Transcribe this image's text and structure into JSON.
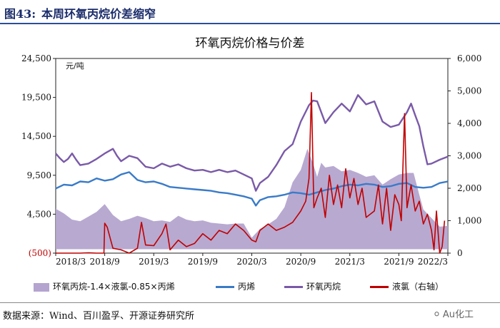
{
  "header": {
    "figure_no": "图43:",
    "figure_title": "本周环氧丙烷价差缩窄"
  },
  "source": "数据来源：Wind、百川盈孚、开源证券研究所",
  "watermark": "Au化工",
  "chart_data": {
    "type": "line",
    "title": "环氧丙烷价格与价差",
    "left_axis": {
      "unit": "元/吨",
      "min": -500,
      "max": 24500,
      "ticks": [
        -500,
        4500,
        9500,
        14500,
        19500,
        24500
      ],
      "tick_labels": [
        "(500)",
        "4,500",
        "9,500",
        "14,500",
        "19,500",
        "24,500"
      ]
    },
    "right_axis": {
      "min": 0,
      "max": 6000,
      "ticks": [
        0,
        1000,
        2000,
        3000,
        4000,
        5000,
        6000
      ],
      "tick_labels": [
        "0",
        "1,000",
        "2,000",
        "3,000",
        "4,000",
        "5,000",
        "6,000"
      ]
    },
    "x_tick_labels": [
      "2018/3",
      "2018/9",
      "2019/3",
      "2019/9",
      "2020/3",
      "2020/9",
      "2021/3",
      "2021/9",
      "2022/3"
    ],
    "x_ticks": [
      0,
      6,
      12,
      18,
      24,
      30,
      36,
      42,
      48
    ],
    "x_unit": "months since 2018/3",
    "series": [
      {
        "name": "环氧丙烷-1.4×液氯-0.85×丙烯",
        "kind": "area",
        "axis": "left",
        "color": "#b4a4cf",
        "points": [
          [
            0,
            5200
          ],
          [
            1,
            4600
          ],
          [
            2,
            3800
          ],
          [
            3,
            3600
          ],
          [
            4,
            4200
          ],
          [
            5,
            4800
          ],
          [
            6,
            5800
          ],
          [
            7,
            4400
          ],
          [
            8,
            3600
          ],
          [
            9,
            3900
          ],
          [
            10,
            4300
          ],
          [
            11,
            4000
          ],
          [
            12,
            3600
          ],
          [
            13,
            3700
          ],
          [
            14,
            3500
          ],
          [
            15,
            4300
          ],
          [
            16,
            3800
          ],
          [
            17,
            3600
          ],
          [
            18,
            3700
          ],
          [
            19,
            3400
          ],
          [
            20,
            3300
          ],
          [
            21,
            3200
          ],
          [
            22,
            3300
          ],
          [
            23,
            3300
          ],
          [
            24,
            1500
          ],
          [
            25,
            2600
          ],
          [
            26,
            3200
          ],
          [
            27,
            3900
          ],
          [
            28,
            5400
          ],
          [
            29,
            8600
          ],
          [
            30,
            10200
          ],
          [
            30.8,
            12900
          ],
          [
            31.5,
            11000
          ],
          [
            32,
            9300
          ],
          [
            32.5,
            11100
          ],
          [
            33,
            10500
          ],
          [
            34,
            10700
          ],
          [
            35,
            10000
          ],
          [
            36,
            10200
          ],
          [
            37,
            9800
          ],
          [
            38,
            9300
          ],
          [
            39,
            9500
          ],
          [
            40,
            8300
          ],
          [
            41,
            9000
          ],
          [
            42,
            9600
          ],
          [
            43,
            9800
          ],
          [
            43.8,
            9800
          ],
          [
            44.5,
            7000
          ],
          [
            45,
            5100
          ],
          [
            46,
            4000
          ],
          [
            47,
            2900
          ],
          [
            48,
            3000
          ]
        ]
      },
      {
        "name": "丙烯",
        "kind": "line",
        "axis": "left",
        "color": "#3a7bc8",
        "points": [
          [
            0,
            7800
          ],
          [
            1,
            8300
          ],
          [
            2,
            8200
          ],
          [
            3,
            8700
          ],
          [
            4,
            8600
          ],
          [
            5,
            9100
          ],
          [
            6,
            8800
          ],
          [
            7,
            9000
          ],
          [
            8,
            9600
          ],
          [
            9,
            9900
          ],
          [
            10,
            8900
          ],
          [
            11,
            8600
          ],
          [
            12,
            8700
          ],
          [
            13,
            8400
          ],
          [
            14,
            8000
          ],
          [
            15,
            7900
          ],
          [
            16,
            7800
          ],
          [
            17,
            7700
          ],
          [
            18,
            7600
          ],
          [
            19,
            7500
          ],
          [
            20,
            7300
          ],
          [
            21,
            7200
          ],
          [
            22,
            7000
          ],
          [
            23,
            6800
          ],
          [
            24,
            6500
          ],
          [
            24.5,
            5600
          ],
          [
            25,
            6300
          ],
          [
            26,
            6700
          ],
          [
            27,
            6800
          ],
          [
            28,
            7000
          ],
          [
            29,
            7300
          ],
          [
            30,
            7200
          ],
          [
            31,
            7000
          ],
          [
            32,
            7300
          ],
          [
            33,
            7600
          ],
          [
            34,
            7800
          ],
          [
            35,
            8100
          ],
          [
            36,
            8300
          ],
          [
            37,
            8200
          ],
          [
            38,
            8400
          ],
          [
            39,
            8300
          ],
          [
            40,
            8000
          ],
          [
            41,
            8100
          ],
          [
            42,
            8400
          ],
          [
            43,
            8500
          ],
          [
            44,
            8000
          ],
          [
            45,
            7900
          ],
          [
            46,
            8000
          ],
          [
            47,
            8500
          ],
          [
            48,
            8700
          ]
        ]
      },
      {
        "name": "环氧丙烷",
        "kind": "line",
        "axis": "left",
        "color": "#7a5aa8",
        "points": [
          [
            0,
            12300
          ],
          [
            0.5,
            11700
          ],
          [
            1,
            11200
          ],
          [
            1.5,
            11600
          ],
          [
            2,
            12300
          ],
          [
            2.5,
            11500
          ],
          [
            3,
            10800
          ],
          [
            4,
            11000
          ],
          [
            5,
            11600
          ],
          [
            6,
            12300
          ],
          [
            7,
            12900
          ],
          [
            7.5,
            12000
          ],
          [
            8,
            11300
          ],
          [
            9,
            12000
          ],
          [
            10,
            11700
          ],
          [
            11,
            10600
          ],
          [
            12,
            10400
          ],
          [
            13,
            11000
          ],
          [
            14,
            10600
          ],
          [
            15,
            10900
          ],
          [
            16,
            10400
          ],
          [
            17,
            10100
          ],
          [
            18,
            10200
          ],
          [
            19,
            9900
          ],
          [
            20,
            10200
          ],
          [
            21,
            9900
          ],
          [
            22,
            10100
          ],
          [
            23,
            9600
          ],
          [
            24,
            9100
          ],
          [
            24.5,
            7500
          ],
          [
            25,
            8500
          ],
          [
            26,
            9300
          ],
          [
            27,
            10800
          ],
          [
            28,
            12600
          ],
          [
            29,
            13500
          ],
          [
            30,
            16400
          ],
          [
            31,
            18500
          ],
          [
            31.5,
            19100
          ],
          [
            32,
            19000
          ],
          [
            33,
            16200
          ],
          [
            34,
            17600
          ],
          [
            35,
            18700
          ],
          [
            36,
            17700
          ],
          [
            37,
            19800
          ],
          [
            38,
            18600
          ],
          [
            39,
            19000
          ],
          [
            40,
            16400
          ],
          [
            41,
            15700
          ],
          [
            42,
            16000
          ],
          [
            43,
            17600
          ],
          [
            43.5,
            18700
          ],
          [
            44,
            17200
          ],
          [
            44.5,
            15800
          ],
          [
            45,
            13200
          ],
          [
            45.5,
            10900
          ],
          [
            46,
            11000
          ],
          [
            47,
            11500
          ],
          [
            48,
            11900
          ]
        ]
      },
      {
        "name": "液氯（右轴）",
        "kind": "line",
        "axis": "right",
        "color": "#c00000",
        "points": [
          [
            0,
            0
          ],
          [
            1,
            0
          ],
          [
            2,
            0
          ],
          [
            3,
            0
          ],
          [
            4,
            10
          ],
          [
            5,
            0
          ],
          [
            5.9,
            0
          ],
          [
            6,
            920
          ],
          [
            6.3,
            800
          ],
          [
            7,
            150
          ],
          [
            8,
            100
          ],
          [
            9,
            0
          ],
          [
            10,
            150
          ],
          [
            10.5,
            950
          ],
          [
            11,
            250
          ],
          [
            12,
            230
          ],
          [
            13,
            600
          ],
          [
            13.5,
            900
          ],
          [
            14,
            100
          ],
          [
            15,
            400
          ],
          [
            16,
            200
          ],
          [
            17,
            300
          ],
          [
            18,
            600
          ],
          [
            19,
            400
          ],
          [
            20,
            700
          ],
          [
            21,
            600
          ],
          [
            22,
            900
          ],
          [
            23,
            700
          ],
          [
            24,
            400
          ],
          [
            24.5,
            350
          ],
          [
            25,
            700
          ],
          [
            26,
            900
          ],
          [
            27,
            700
          ],
          [
            28,
            800
          ],
          [
            29,
            950
          ],
          [
            30,
            1300
          ],
          [
            30.6,
            1600
          ],
          [
            31,
            2300
          ],
          [
            31.3,
            4950
          ],
          [
            31.6,
            1400
          ],
          [
            32,
            1700
          ],
          [
            32.5,
            2000
          ],
          [
            33,
            1100
          ],
          [
            33.5,
            2400
          ],
          [
            34,
            1500
          ],
          [
            34.5,
            2100
          ],
          [
            35,
            1400
          ],
          [
            35.5,
            2600
          ],
          [
            36,
            1700
          ],
          [
            36.5,
            2300
          ],
          [
            37,
            1500
          ],
          [
            37.5,
            2000
          ],
          [
            38,
            1100
          ],
          [
            39,
            1300
          ],
          [
            39.5,
            2100
          ],
          [
            40,
            900
          ],
          [
            40.5,
            2000
          ],
          [
            41,
            700
          ],
          [
            41.5,
            1800
          ],
          [
            42,
            1500
          ],
          [
            42.3,
            1000
          ],
          [
            42.7,
            4300
          ],
          [
            43,
            1400
          ],
          [
            43.5,
            2100
          ],
          [
            44,
            1300
          ],
          [
            44.5,
            1600
          ],
          [
            45,
            900
          ],
          [
            45.5,
            1200
          ],
          [
            46,
            700
          ],
          [
            46.3,
            100
          ],
          [
            46.6,
            1300
          ],
          [
            47,
            0
          ],
          [
            47.3,
            200
          ],
          [
            47.6,
            1000
          ]
        ]
      }
    ]
  },
  "legend": {
    "area": "环氧丙烷-1.4×液氯-0.85×丙烯",
    "propylene": "丙烯",
    "po": "环氧丙烷",
    "chlorine": "液氯（右轴）"
  },
  "colors": {
    "header": "#1b2d6b",
    "rule": "#2a4e9a"
  }
}
